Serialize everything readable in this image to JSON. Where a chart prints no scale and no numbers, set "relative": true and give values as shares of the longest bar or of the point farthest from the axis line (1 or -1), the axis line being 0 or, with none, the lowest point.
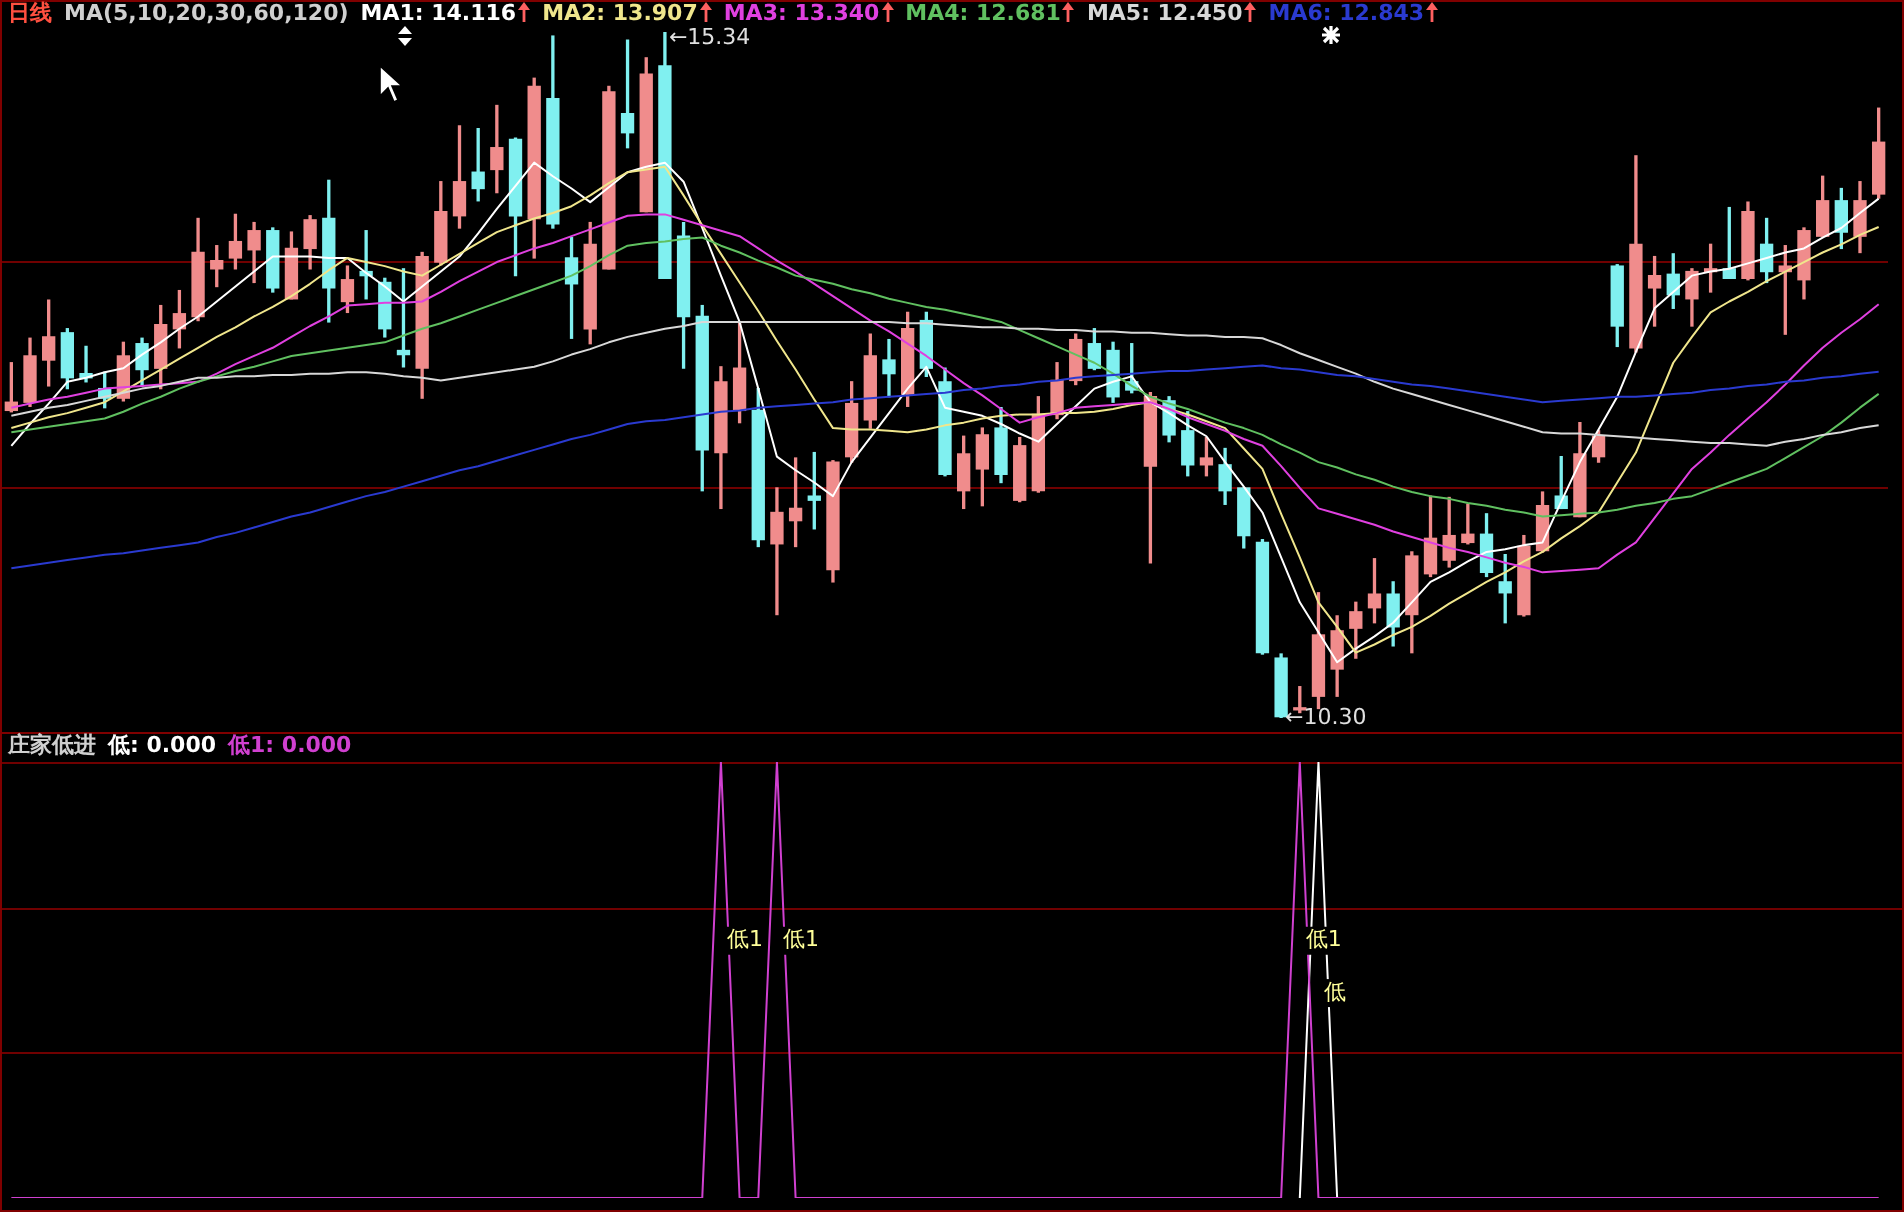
{
  "chart_data": [
    {
      "type": "candlestick",
      "subtitle": "日线",
      "legend_title": "MA(5,10,20,30,60,120)",
      "tick_labels": false,
      "grid": "y",
      "marker": "none",
      "categories": [
        null,
        null,
        null,
        null,
        null,
        null,
        null,
        null,
        null,
        null,
        null,
        null,
        null,
        null,
        null,
        null,
        null,
        null,
        null,
        null,
        null,
        null,
        null,
        null,
        null,
        null,
        null,
        null,
        null,
        null,
        null,
        null,
        null,
        null,
        null,
        null,
        null,
        null,
        null,
        null,
        null,
        null,
        null,
        null,
        null,
        null,
        null,
        null,
        null,
        null,
        null,
        null,
        null,
        null,
        null,
        null,
        null,
        null,
        null,
        null,
        null,
        null,
        null,
        null,
        null,
        null,
        null,
        null,
        null,
        null,
        null,
        null,
        null,
        null,
        null,
        null,
        null,
        null,
        null,
        null,
        null,
        null,
        null,
        null,
        null,
        null,
        null,
        null,
        null,
        null,
        null,
        null,
        null,
        null,
        null,
        null,
        null,
        null,
        null,
        null,
        null
      ],
      "yticks": [
        {
          "value": 13.65,
          "label": null
        },
        {
          "value": 11.99,
          "label": null
        }
      ],
      "ohlc": [
        [
          12.56,
          12.91,
          12.55,
          12.62
        ],
        [
          12.62,
          13.09,
          12.59,
          12.96
        ],
        [
          12.93,
          13.37,
          12.74,
          13.1
        ],
        [
          13.13,
          13.16,
          12.72,
          12.8
        ],
        [
          12.83,
          13.03,
          12.77,
          12.8
        ],
        [
          12.72,
          12.84,
          12.58,
          12.65
        ],
        [
          12.65,
          13.06,
          12.63,
          12.96
        ],
        [
          13.05,
          13.09,
          12.74,
          12.86
        ],
        [
          12.87,
          13.33,
          12.72,
          13.19
        ],
        [
          13.16,
          13.44,
          13.02,
          13.27
        ],
        [
          13.25,
          13.97,
          13.22,
          13.72
        ],
        [
          13.6,
          13.77,
          13.47,
          13.66
        ],
        [
          13.68,
          14.0,
          13.6,
          13.8
        ],
        [
          13.74,
          13.94,
          13.5,
          13.88
        ],
        [
          13.88,
          13.9,
          13.43,
          13.46
        ],
        [
          13.38,
          13.87,
          13.38,
          13.75
        ],
        [
          13.75,
          13.99,
          13.6,
          13.96
        ],
        [
          13.97,
          14.25,
          13.21,
          13.46
        ],
        [
          13.36,
          13.62,
          13.28,
          13.52
        ],
        [
          13.58,
          13.88,
          13.38,
          13.55
        ],
        [
          13.5,
          13.53,
          13.1,
          13.16
        ],
        [
          13.0,
          13.6,
          12.88,
          12.97
        ],
        [
          12.87,
          13.72,
          12.65,
          13.69
        ],
        [
          13.65,
          14.24,
          13.63,
          14.02
        ],
        [
          13.99,
          14.65,
          13.9,
          14.24
        ],
        [
          14.31,
          14.63,
          14.1,
          14.19
        ],
        [
          14.33,
          14.8,
          14.16,
          14.49
        ],
        [
          14.55,
          14.56,
          13.55,
          13.99
        ],
        [
          13.97,
          15.0,
          13.68,
          14.94
        ],
        [
          14.85,
          15.31,
          13.9,
          13.93
        ],
        [
          13.68,
          13.83,
          13.09,
          13.49
        ],
        [
          13.16,
          13.94,
          13.05,
          13.78
        ],
        [
          13.6,
          14.94,
          13.6,
          14.9
        ],
        [
          14.74,
          15.28,
          14.49,
          14.6
        ],
        [
          14.02,
          15.15,
          14.02,
          15.03
        ],
        [
          15.09,
          15.34,
          13.53,
          13.53
        ],
        [
          13.84,
          13.94,
          12.87,
          13.25
        ],
        [
          13.25,
          13.33,
          11.97,
          12.27
        ],
        [
          12.25,
          12.88,
          11.84,
          12.77
        ],
        [
          12.56,
          13.21,
          12.47,
          12.87
        ],
        [
          12.56,
          12.72,
          11.56,
          11.61
        ],
        [
          11.58,
          11.99,
          11.06,
          11.81
        ],
        [
          11.75,
          12.21,
          11.56,
          11.84
        ],
        [
          11.93,
          12.25,
          11.69,
          11.9
        ],
        [
          11.39,
          12.19,
          11.3,
          12.18
        ],
        [
          12.22,
          12.77,
          12.18,
          12.61
        ],
        [
          12.49,
          13.12,
          12.43,
          12.96
        ],
        [
          12.93,
          13.08,
          12.66,
          12.83
        ],
        [
          12.68,
          13.28,
          12.59,
          13.16
        ],
        [
          13.22,
          13.28,
          12.81,
          12.87
        ],
        [
          12.77,
          12.87,
          12.08,
          12.09
        ],
        [
          11.97,
          12.37,
          11.84,
          12.24
        ],
        [
          12.13,
          12.43,
          11.86,
          12.38
        ],
        [
          12.43,
          12.58,
          12.03,
          12.09
        ],
        [
          11.9,
          12.36,
          11.89,
          12.3
        ],
        [
          11.97,
          12.66,
          11.96,
          12.53
        ],
        [
          12.53,
          12.91,
          12.5,
          12.78
        ],
        [
          12.78,
          13.12,
          12.75,
          13.08
        ],
        [
          13.05,
          13.16,
          12.86,
          12.87
        ],
        [
          13.0,
          13.06,
          12.62,
          12.66
        ],
        [
          12.77,
          13.05,
          12.69,
          12.71
        ],
        [
          12.15,
          12.69,
          11.44,
          12.66
        ],
        [
          12.63,
          12.66,
          12.33,
          12.38
        ],
        [
          12.41,
          12.55,
          12.08,
          12.16
        ],
        [
          12.16,
          12.36,
          12.08,
          12.21
        ],
        [
          12.16,
          12.28,
          11.87,
          11.97
        ],
        [
          11.99,
          11.99,
          11.55,
          11.64
        ],
        [
          11.59,
          11.61,
          10.77,
          10.78
        ],
        [
          10.74,
          10.77,
          10.3,
          10.31
        ],
        [
          10.36,
          10.53,
          10.34,
          10.37
        ],
        [
          10.46,
          11.22,
          10.37,
          10.91
        ],
        [
          10.66,
          11.05,
          10.46,
          10.94
        ],
        [
          10.96,
          11.15,
          10.74,
          11.08
        ],
        [
          11.11,
          11.47,
          11.0,
          11.21
        ],
        [
          11.21,
          11.3,
          10.83,
          10.97
        ],
        [
          11.06,
          11.52,
          10.78,
          11.49
        ],
        [
          11.36,
          11.93,
          11.34,
          11.62
        ],
        [
          11.46,
          11.92,
          11.41,
          11.64
        ],
        [
          11.59,
          11.87,
          11.58,
          11.65
        ],
        [
          11.65,
          11.8,
          11.34,
          11.37
        ],
        [
          11.3,
          11.5,
          11.0,
          11.22
        ],
        [
          11.06,
          11.64,
          11.05,
          11.56
        ],
        [
          11.53,
          11.96,
          11.52,
          11.86
        ],
        [
          11.93,
          12.22,
          11.84,
          11.84
        ],
        [
          11.78,
          12.47,
          11.78,
          12.24
        ],
        [
          12.22,
          12.41,
          12.18,
          12.37
        ],
        [
          13.62,
          13.63,
          13.03,
          13.18
        ],
        [
          13.02,
          14.43,
          12.99,
          13.78
        ],
        [
          13.46,
          13.69,
          13.18,
          13.55
        ],
        [
          13.56,
          13.71,
          13.31,
          13.41
        ],
        [
          13.38,
          13.6,
          13.18,
          13.58
        ],
        [
          13.58,
          13.78,
          13.43,
          13.6
        ],
        [
          13.6,
          14.05,
          13.53,
          13.53
        ],
        [
          13.53,
          14.09,
          13.52,
          14.02
        ],
        [
          13.78,
          13.97,
          13.5,
          13.58
        ],
        [
          13.58,
          13.77,
          13.12,
          13.62
        ],
        [
          13.52,
          13.9,
          13.38,
          13.88
        ],
        [
          13.84,
          14.28,
          13.84,
          14.1
        ],
        [
          14.1,
          14.19,
          13.75,
          13.87
        ],
        [
          13.84,
          14.24,
          13.72,
          14.1
        ],
        [
          14.15,
          14.78,
          14.12,
          14.53
        ]
      ],
      "colors": [
        "#f08c8c",
        "#f08c8c",
        "#f08c8c",
        "#80f0f0",
        "#80f0f0",
        "#80f0f0",
        "#f08c8c",
        "#80f0f0",
        "#f08c8c",
        "#f08c8c",
        "#f08c8c",
        "#f08c8c",
        "#f08c8c",
        "#f08c8c",
        "#80f0f0",
        "#f08c8c",
        "#f08c8c",
        "#80f0f0",
        "#f08c8c",
        "#80f0f0",
        "#80f0f0",
        "#80f0f0",
        "#f08c8c",
        "#f08c8c",
        "#f08c8c",
        "#80f0f0",
        "#f08c8c",
        "#80f0f0",
        "#f08c8c",
        "#80f0f0",
        "#80f0f0",
        "#f08c8c",
        "#f08c8c",
        "#80f0f0",
        "#f08c8c",
        "#80f0f0",
        "#80f0f0",
        "#80f0f0",
        "#f08c8c",
        "#f08c8c",
        "#80f0f0",
        "#f08c8c",
        "#f08c8c",
        "#80f0f0",
        "#f08c8c",
        "#f08c8c",
        "#f08c8c",
        "#80f0f0",
        "#f08c8c",
        "#80f0f0",
        "#80f0f0",
        "#f08c8c",
        "#f08c8c",
        "#80f0f0",
        "#f08c8c",
        "#f08c8c",
        "#f08c8c",
        "#f08c8c",
        "#80f0f0",
        "#80f0f0",
        "#80f0f0",
        "#f08c8c",
        "#80f0f0",
        "#80f0f0",
        "#f08c8c",
        "#80f0f0",
        "#80f0f0",
        "#80f0f0",
        "#80f0f0",
        "#f08c8c",
        "#f08c8c",
        "#f08c8c",
        "#f08c8c",
        "#f08c8c",
        "#80f0f0",
        "#f08c8c",
        "#f08c8c",
        "#f08c8c",
        "#f08c8c",
        "#80f0f0",
        "#80f0f0",
        "#f08c8c",
        "#f08c8c",
        "#80f0f0",
        "#f08c8c",
        "#f08c8c",
        "#80f0f0",
        "#f08c8c",
        "#f08c8c",
        "#80f0f0",
        "#f08c8c",
        "#f08c8c",
        "#80f0f0",
        "#f08c8c",
        "#80f0f0",
        "#f08c8c",
        "#f08c8c",
        "#f08c8c",
        "#80f0f0",
        "#f08c8c",
        "#f08c8c"
      ],
      "series": [
        {
          "type": "line",
          "name": "MA1: 14.116",
          "color": "#ffffff",
          "values": [
            12.3,
            12.46,
            12.61,
            12.77,
            12.8,
            12.84,
            12.87,
            12.97,
            13.06,
            13.16,
            13.25,
            13.36,
            13.47,
            13.58,
            13.69,
            13.69,
            13.69,
            13.68,
            13.68,
            13.57,
            13.47,
            13.36,
            13.47,
            13.58,
            13.69,
            13.86,
            14.04,
            14.21,
            14.38,
            14.28,
            14.19,
            14.09,
            14.2,
            14.31,
            14.35,
            14.38,
            14.24,
            13.9,
            13.55,
            13.21,
            12.72,
            12.22,
            12.12,
            12.03,
            11.93,
            12.18,
            12.36,
            12.54,
            12.72,
            12.88,
            12.58,
            12.55,
            12.52,
            12.46,
            12.39,
            12.33,
            12.46,
            12.59,
            12.72,
            12.77,
            12.81,
            12.62,
            12.54,
            12.45,
            12.37,
            12.18,
            12.0,
            11.81,
            11.48,
            11.15,
            10.93,
            10.71,
            10.81,
            10.9,
            11.0,
            11.15,
            11.3,
            11.37,
            11.45,
            11.52,
            11.54,
            11.57,
            11.59,
            11.89,
            12.18,
            12.42,
            12.66,
            12.99,
            13.31,
            13.43,
            13.55,
            13.58,
            13.6,
            13.64,
            13.68,
            13.72,
            13.75,
            13.83,
            13.9,
            14.01,
            14.116
          ]
        },
        {
          "type": "line",
          "name": "MA2: 13.907",
          "color": "#f0e68c",
          "values": [
            12.43,
            12.47,
            12.51,
            12.54,
            12.58,
            12.62,
            12.7,
            12.78,
            12.86,
            12.94,
            13.02,
            13.1,
            13.17,
            13.25,
            13.32,
            13.4,
            13.49,
            13.59,
            13.68,
            13.65,
            13.62,
            13.58,
            13.55,
            13.63,
            13.71,
            13.79,
            13.87,
            13.92,
            13.97,
            14.01,
            14.06,
            14.14,
            14.23,
            14.31,
            14.33,
            14.35,
            14.14,
            13.92,
            13.71,
            13.5,
            13.29,
            13.07,
            12.86,
            12.64,
            12.43,
            12.42,
            12.42,
            12.41,
            12.4,
            12.42,
            12.45,
            12.47,
            12.5,
            12.52,
            12.53,
            12.53,
            12.54,
            12.54,
            12.55,
            12.57,
            12.6,
            12.62,
            12.57,
            12.53,
            12.48,
            12.43,
            12.28,
            12.13,
            11.8,
            11.48,
            11.15,
            10.97,
            10.78,
            10.84,
            10.91,
            10.97,
            11.05,
            11.14,
            11.22,
            11.3,
            11.37,
            11.45,
            11.52,
            11.62,
            11.71,
            11.81,
            12.03,
            12.25,
            12.58,
            12.91,
            13.1,
            13.28,
            13.36,
            13.43,
            13.51,
            13.58,
            13.65,
            13.72,
            13.78,
            13.85,
            13.907
          ]
        },
        {
          "type": "line",
          "name": "MA3: 13.340",
          "color": "#e040e0",
          "values": [
            12.58,
            12.61,
            12.64,
            12.66,
            12.69,
            12.72,
            12.73,
            12.74,
            12.75,
            12.76,
            12.77,
            12.83,
            12.9,
            12.96,
            13.02,
            13.1,
            13.18,
            13.25,
            13.33,
            13.34,
            13.35,
            13.35,
            13.36,
            13.43,
            13.51,
            13.58,
            13.65,
            13.7,
            13.75,
            13.79,
            13.84,
            13.89,
            13.94,
            13.99,
            14.0,
            14.0,
            13.96,
            13.92,
            13.88,
            13.84,
            13.75,
            13.66,
            13.58,
            13.49,
            13.4,
            13.31,
            13.22,
            13.14,
            13.05,
            12.96,
            12.86,
            12.76,
            12.67,
            12.57,
            12.47,
            12.51,
            12.54,
            12.58,
            12.59,
            12.6,
            12.61,
            12.62,
            12.57,
            12.51,
            12.46,
            12.41,
            12.35,
            12.3,
            12.15,
            11.99,
            11.84,
            11.8,
            11.76,
            11.72,
            11.67,
            11.63,
            11.59,
            11.55,
            11.52,
            11.48,
            11.44,
            11.41,
            11.37,
            11.38,
            11.39,
            11.4,
            11.5,
            11.59,
            11.77,
            11.95,
            12.13,
            12.25,
            12.38,
            12.5,
            12.62,
            12.75,
            12.89,
            13.02,
            13.13,
            13.23,
            13.34
          ]
        },
        {
          "type": "line",
          "name": "MA4: 12.681",
          "color": "#60c060",
          "values": [
            12.4,
            12.42,
            12.44,
            12.46,
            12.48,
            12.5,
            12.55,
            12.61,
            12.66,
            12.72,
            12.77,
            12.81,
            12.85,
            12.88,
            12.92,
            12.96,
            12.98,
            13.0,
            13.02,
            13.04,
            13.06,
            13.11,
            13.16,
            13.2,
            13.25,
            13.3,
            13.35,
            13.4,
            13.45,
            13.5,
            13.55,
            13.62,
            13.7,
            13.77,
            13.79,
            13.8,
            13.82,
            13.83,
            13.77,
            13.72,
            13.66,
            13.61,
            13.55,
            13.52,
            13.49,
            13.45,
            13.42,
            13.38,
            13.35,
            13.32,
            13.3,
            13.27,
            13.24,
            13.21,
            13.15,
            13.09,
            13.03,
            12.97,
            12.91,
            12.83,
            12.74,
            12.66,
            12.61,
            12.57,
            12.52,
            12.47,
            12.43,
            12.38,
            12.31,
            12.25,
            12.18,
            12.14,
            12.09,
            12.05,
            12.0,
            11.96,
            11.93,
            11.91,
            11.88,
            11.86,
            11.83,
            11.81,
            11.78,
            11.79,
            11.8,
            11.81,
            11.83,
            11.86,
            11.88,
            11.91,
            11.93,
            11.98,
            12.03,
            12.08,
            12.13,
            12.21,
            12.29,
            12.37,
            12.47,
            12.58,
            12.681
          ]
        },
        {
          "type": "line",
          "name": "MA5: 12.450",
          "color": "#d8d8d8",
          "values": [
            12.52,
            12.55,
            12.58,
            12.6,
            12.63,
            12.66,
            12.69,
            12.72,
            12.74,
            12.77,
            12.8,
            12.8,
            12.81,
            12.81,
            12.82,
            12.82,
            12.83,
            12.83,
            12.84,
            12.84,
            12.83,
            12.81,
            12.8,
            12.78,
            12.8,
            12.82,
            12.84,
            12.86,
            12.88,
            12.92,
            12.97,
            13.01,
            13.06,
            13.1,
            13.13,
            13.16,
            13.18,
            13.21,
            13.21,
            13.21,
            13.21,
            13.21,
            13.21,
            13.21,
            13.21,
            13.21,
            13.21,
            13.21,
            13.2,
            13.2,
            13.19,
            13.18,
            13.17,
            13.17,
            13.16,
            13.16,
            13.15,
            13.15,
            13.14,
            13.14,
            13.13,
            13.13,
            13.12,
            13.11,
            13.11,
            13.1,
            13.1,
            13.09,
            13.04,
            12.98,
            12.93,
            12.88,
            12.83,
            12.77,
            12.72,
            12.68,
            12.64,
            12.6,
            12.56,
            12.52,
            12.48,
            12.44,
            12.4,
            12.39,
            12.39,
            12.38,
            12.37,
            12.36,
            12.35,
            12.34,
            12.33,
            12.32,
            12.32,
            12.31,
            12.3,
            12.33,
            12.35,
            12.38,
            12.4,
            12.43,
            12.45
          ]
        },
        {
          "type": "line",
          "name": "MA6: 12.843",
          "color": "#2a3ad0",
          "values": [
            11.4,
            11.42,
            11.44,
            11.46,
            11.48,
            11.5,
            11.51,
            11.53,
            11.55,
            11.57,
            11.59,
            11.63,
            11.66,
            11.7,
            11.74,
            11.78,
            11.81,
            11.85,
            11.89,
            11.93,
            11.96,
            12.0,
            12.04,
            12.08,
            12.12,
            12.15,
            12.19,
            12.23,
            12.27,
            12.31,
            12.35,
            12.38,
            12.42,
            12.46,
            12.48,
            12.49,
            12.51,
            12.53,
            12.55,
            12.56,
            12.58,
            12.59,
            12.6,
            12.61,
            12.62,
            12.64,
            12.65,
            12.66,
            12.67,
            12.68,
            12.69,
            12.71,
            12.72,
            12.74,
            12.75,
            12.77,
            12.78,
            12.8,
            12.81,
            12.82,
            12.83,
            12.84,
            12.85,
            12.85,
            12.86,
            12.87,
            12.88,
            12.89,
            12.87,
            12.86,
            12.84,
            12.82,
            12.81,
            12.79,
            12.77,
            12.75,
            12.74,
            12.72,
            12.7,
            12.68,
            12.66,
            12.64,
            12.62,
            12.63,
            12.64,
            12.65,
            12.66,
            12.66,
            12.67,
            12.68,
            12.69,
            12.71,
            12.72,
            12.74,
            12.75,
            12.77,
            12.78,
            12.8,
            12.81,
            12.83,
            12.843
          ]
        }
      ],
      "annotations": [
        "←15.34",
        "←10.30"
      ]
    },
    {
      "type": "line",
      "title": "庄家低进",
      "relative": true,
      "tick_labels": false,
      "marker": "none",
      "ref_lines": [
        {
          "axis": "y",
          "value": 0.333,
          "color": "#700000"
        },
        {
          "axis": "y",
          "value": 0.667,
          "color": "#700000"
        },
        {
          "axis": "y",
          "value": 1,
          "color": "#700000"
        }
      ],
      "categories": [
        null,
        null,
        null,
        null,
        null,
        null,
        null,
        null,
        null,
        null,
        null,
        null,
        null,
        null,
        null,
        null,
        null,
        null,
        null,
        null,
        null,
        null,
        null,
        null,
        null,
        null,
        null,
        null,
        null,
        null,
        null,
        null,
        null,
        null,
        null,
        null,
        null,
        null,
        null,
        null,
        null,
        null,
        null,
        null,
        null,
        null,
        null,
        null,
        null,
        null,
        null,
        null,
        null,
        null,
        null,
        null,
        null,
        null,
        null,
        null,
        null,
        null,
        null,
        null,
        null,
        null,
        null,
        null,
        null,
        null,
        null,
        null,
        null,
        null,
        null,
        null,
        null,
        null,
        null,
        null,
        null,
        null,
        null,
        null,
        null,
        null,
        null,
        null,
        null,
        null,
        null,
        null,
        null,
        null,
        null,
        null,
        null,
        null,
        null,
        null,
        null
      ],
      "series": [
        {
          "name": "低: 0.000",
          "color": "#ffffff",
          "values": [
            null,
            null,
            null,
            null,
            null,
            null,
            null,
            null,
            null,
            null,
            null,
            null,
            null,
            null,
            null,
            null,
            null,
            null,
            null,
            null,
            null,
            null,
            null,
            null,
            null,
            null,
            null,
            null,
            null,
            null,
            null,
            null,
            null,
            null,
            null,
            null,
            null,
            null,
            null,
            null,
            null,
            null,
            null,
            null,
            null,
            null,
            null,
            null,
            null,
            null,
            null,
            null,
            null,
            null,
            null,
            null,
            null,
            null,
            null,
            null,
            null,
            null,
            null,
            null,
            null,
            null,
            null,
            null,
            null,
            0,
            1,
            0,
            null,
            null,
            null,
            null,
            null,
            null,
            null,
            null,
            null,
            null,
            null,
            null,
            null,
            null,
            null,
            null,
            null,
            null,
            null,
            null,
            null,
            null,
            null,
            null,
            null,
            null,
            null,
            null,
            null
          ]
        },
        {
          "name": "低1: 0.000",
          "color": "#d040d0",
          "values": [
            0,
            0,
            0,
            0,
            0,
            0,
            0,
            0,
            0,
            0,
            0,
            0,
            0,
            0,
            0,
            0,
            0,
            0,
            0,
            0,
            0,
            0,
            0,
            0,
            0,
            0,
            0,
            0,
            0,
            0,
            0,
            0,
            0,
            0,
            0,
            0,
            0,
            0,
            1,
            0,
            0,
            1,
            0,
            0,
            0,
            0,
            0,
            0,
            0,
            0,
            0,
            0,
            0,
            0,
            0,
            0,
            0,
            0,
            0,
            0,
            0,
            0,
            0,
            0,
            0,
            0,
            0,
            0,
            0,
            1,
            0,
            0,
            0,
            0,
            0,
            0,
            0,
            0,
            0,
            0,
            0,
            0,
            0,
            0,
            0,
            0,
            0,
            0,
            0,
            0,
            0,
            0,
            0,
            0,
            0,
            0,
            0,
            0,
            0,
            0,
            0
          ]
        }
      ],
      "annotations": [
        {
          "text": "低1",
          "y": 0.59
        },
        {
          "text": "低1",
          "y": 0.59
        },
        {
          "text": "低1",
          "y": 0.59
        },
        {
          "text": "低",
          "y": 0.47
        }
      ]
    }
  ]
}
